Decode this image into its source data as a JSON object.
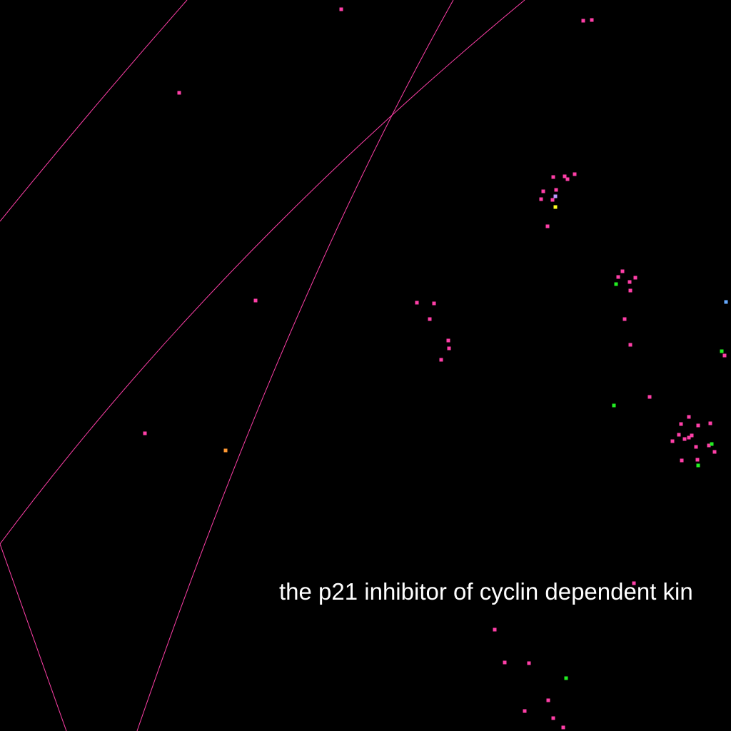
{
  "caption": "the p21 inhibitor of cyclin dependent kin",
  "colors": {
    "background": "#000000",
    "edge": "#ff3fa8",
    "caption": "#ffffff",
    "node_pink": "#ff3fa8",
    "node_green": "#22ee22",
    "node_yellow": "#ffff22",
    "node_orange": "#ff9933",
    "node_blue": "#66aaff",
    "node_lavender": "#bb99ff"
  }
}
